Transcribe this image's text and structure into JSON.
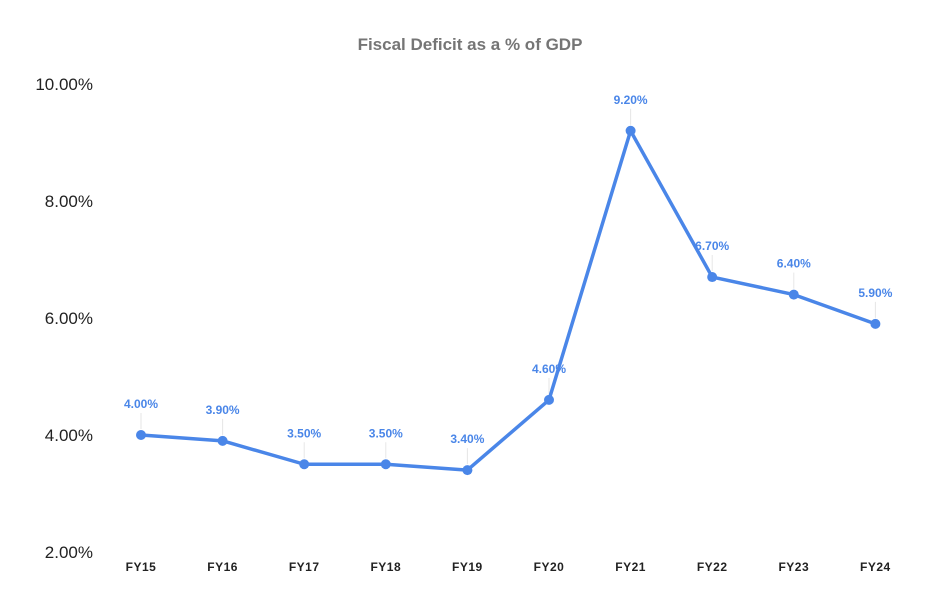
{
  "colors": {
    "series": "#4a86e8",
    "title": "#757575",
    "axis_text": "#222222",
    "background": "#ffffff"
  },
  "chart_data": {
    "type": "line",
    "title": "Fiscal Deficit as a % of GDP",
    "xlabel": "",
    "ylabel": "",
    "categories": [
      "FY15",
      "FY16",
      "FY17",
      "FY18",
      "FY19",
      "FY20",
      "FY21",
      "FY22",
      "FY23",
      "FY24"
    ],
    "series": [
      {
        "values": [
          4.0,
          3.9,
          3.5,
          3.5,
          3.4,
          4.6,
          9.2,
          6.7,
          6.4,
          5.9
        ],
        "data_labels": [
          "4.00%",
          "3.90%",
          "3.50%",
          "3.50%",
          "3.40%",
          "4.60%",
          "9.20%",
          "6.70%",
          "6.40%",
          "5.90%"
        ]
      }
    ],
    "ylim": [
      2,
      10
    ],
    "yticks": [
      2,
      4,
      6,
      8,
      10
    ],
    "ytick_labels": [
      "2.00%",
      "4.00%",
      "6.00%",
      "8.00%",
      "10.00%"
    ],
    "grid": false,
    "legend": "none"
  }
}
